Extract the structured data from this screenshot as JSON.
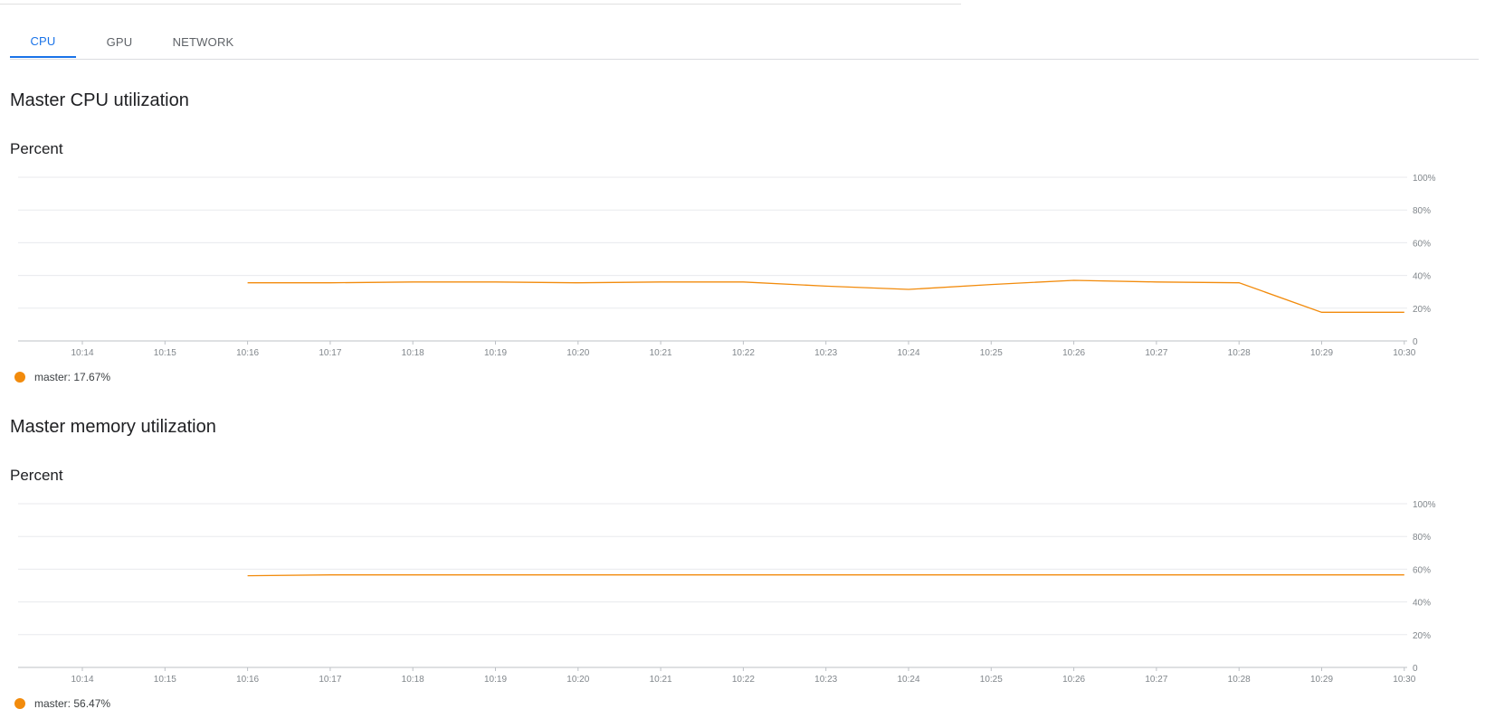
{
  "tabs": [
    {
      "label": "CPU",
      "active": true
    },
    {
      "label": "GPU",
      "active": false
    },
    {
      "label": "NETWORK",
      "active": false
    }
  ],
  "colors": {
    "accent": "#1a73e8",
    "series": "#f28b0c",
    "grid": "#e8eaed",
    "tick_text": "#80868b"
  },
  "sections": {
    "cpu": {
      "title": "Master CPU utilization",
      "unit": "Percent",
      "legend": {
        "name": "master:",
        "value": "17.67%"
      }
    },
    "memory": {
      "title": "Master memory utilization",
      "unit": "Percent",
      "legend": {
        "name": "master:",
        "value": "56.47%"
      }
    }
  },
  "chart_data": [
    {
      "type": "line",
      "title": "Master CPU utilization",
      "ylabel": "Percent",
      "xlabel": "",
      "ylim": [
        0,
        100
      ],
      "y_ticks": [
        "0",
        "20%",
        "40%",
        "60%",
        "80%",
        "100%"
      ],
      "x_ticks": [
        "10:14",
        "10:15",
        "10:16",
        "10:17",
        "10:18",
        "10:19",
        "10:20",
        "10:21",
        "10:22",
        "10:23",
        "10:24",
        "10:25",
        "10:26",
        "10:27",
        "10:28",
        "10:29",
        "10:30"
      ],
      "grid": true,
      "legend_position": "bottom-left",
      "series": [
        {
          "name": "master",
          "x": [
            "10:16",
            "10:17",
            "10:18",
            "10:19",
            "10:20",
            "10:21",
            "10:22",
            "10:23",
            "10:24",
            "10:25",
            "10:26",
            "10:27",
            "10:28",
            "10:29",
            "10:30"
          ],
          "values": [
            35.5,
            35.5,
            36,
            36,
            35.5,
            36,
            36,
            33.5,
            31.5,
            34.5,
            37,
            36,
            35.5,
            17.5,
            17.5
          ]
        }
      ]
    },
    {
      "type": "line",
      "title": "Master memory utilization",
      "ylabel": "Percent",
      "xlabel": "",
      "ylim": [
        0,
        100
      ],
      "y_ticks": [
        "0",
        "20%",
        "40%",
        "60%",
        "80%",
        "100%"
      ],
      "x_ticks": [
        "10:14",
        "10:15",
        "10:16",
        "10:17",
        "10:18",
        "10:19",
        "10:20",
        "10:21",
        "10:22",
        "10:23",
        "10:24",
        "10:25",
        "10:26",
        "10:27",
        "10:28",
        "10:29",
        "10:30"
      ],
      "grid": true,
      "legend_position": "bottom-left",
      "series": [
        {
          "name": "master",
          "x": [
            "10:16",
            "10:17",
            "10:18",
            "10:19",
            "10:20",
            "10:21",
            "10:22",
            "10:23",
            "10:24",
            "10:25",
            "10:26",
            "10:27",
            "10:28",
            "10:29",
            "10:30"
          ],
          "values": [
            56,
            56.5,
            56.5,
            56.5,
            56.5,
            56.5,
            56.5,
            56.5,
            56.5,
            56.5,
            56.5,
            56.5,
            56.5,
            56.5,
            56.5
          ]
        }
      ]
    }
  ]
}
